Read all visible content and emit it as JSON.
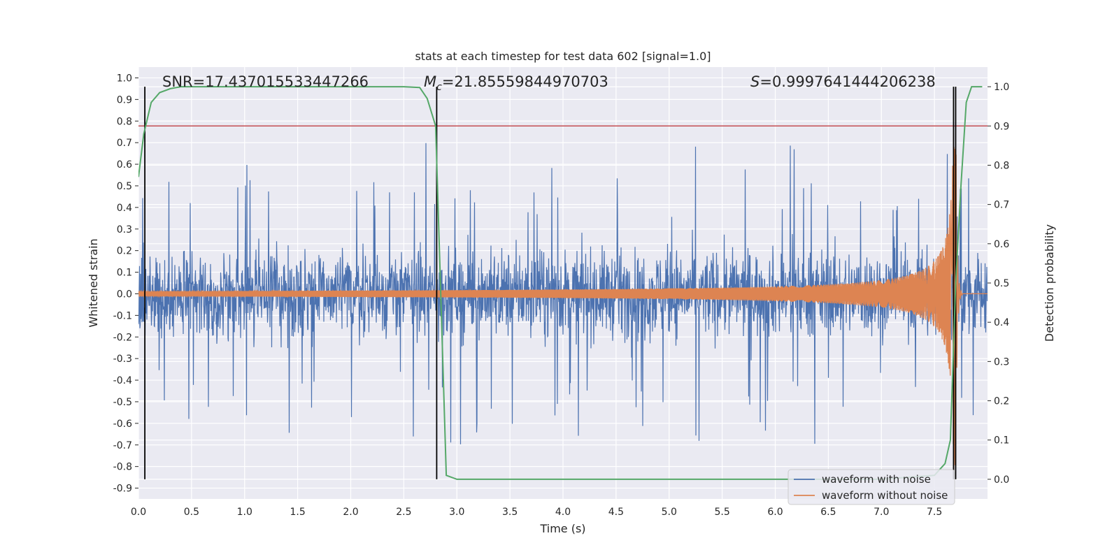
{
  "chart_data": {
    "type": "line",
    "title": "stats at each timestep for test data 602 [signal=1.0]",
    "xlabel": "Time (s)",
    "ylabel": "Whitened strain",
    "y2label": "Detection probability",
    "xlim": [
      0.0,
      8.0
    ],
    "ylim": [
      -0.95,
      1.05
    ],
    "y2lim": [
      -0.05,
      1.05
    ],
    "xticks": [
      "0.0",
      "0.5",
      "1.0",
      "1.5",
      "2.0",
      "2.5",
      "3.0",
      "3.5",
      "4.0",
      "4.5",
      "5.0",
      "5.5",
      "6.0",
      "6.5",
      "7.0",
      "7.5"
    ],
    "yticks": [
      "1.0",
      "0.9",
      "0.8",
      "0.7",
      "0.6",
      "0.5",
      "0.4",
      "0.3",
      "0.2",
      "0.1",
      "0.0",
      "-0.1",
      "-0.2",
      "-0.3",
      "-0.4",
      "-0.5",
      "-0.6",
      "-0.7",
      "-0.8",
      "-0.9"
    ],
    "y2ticks": [
      "1.0",
      "0.9",
      "0.8",
      "0.7",
      "0.6",
      "0.5",
      "0.4",
      "0.3",
      "0.2",
      "0.1",
      "0.0"
    ],
    "annotations": {
      "snr": "SNR=17.437015533447266",
      "mc_prefix": "M",
      "mc_sub": "c",
      "mc_value": "=21.85559844970703",
      "s_prefix": "S",
      "s_value": "=0.9997641444206238"
    },
    "grid": true,
    "legend_position": "bottom-right",
    "series": [
      {
        "name": "waveform with noise",
        "color": "#4c72b0",
        "description": "noisy whitened strain spanning roughly -0.85 to 0.95",
        "range": [
          -0.88,
          0.95
        ]
      },
      {
        "name": "waveform without noise",
        "color": "#dd8452",
        "description": "chirp signal growing in amplitude until merger near t=7.7 s",
        "merger_time": 7.7,
        "peak_amplitude": 0.9
      },
      {
        "name": "",
        "color": "#55a868",
        "axis": "right",
        "x": [
          0.0,
          0.05,
          0.12,
          0.2,
          0.3,
          0.4,
          0.5,
          1.0,
          2.0,
          2.5,
          2.65,
          2.72,
          2.8,
          2.9,
          3.0,
          5.0,
          7.0,
          7.5,
          7.6,
          7.65,
          7.7,
          7.75,
          7.8,
          7.85,
          7.95
        ],
        "y": [
          0.77,
          0.88,
          0.96,
          0.985,
          0.995,
          1.0,
          1.0,
          1.0,
          1.0,
          1.0,
          0.998,
          0.97,
          0.9,
          0.01,
          0.0,
          0.0,
          0.0,
          0.01,
          0.04,
          0.1,
          0.5,
          0.75,
          0.96,
          1.0,
          1.0
        ]
      }
    ],
    "threshold": {
      "axis": "right",
      "value": 0.9,
      "color": "#c44e52"
    },
    "vlines": [
      0.06,
      2.81,
      7.68,
      7.7
    ],
    "vline_color": "#000000"
  }
}
